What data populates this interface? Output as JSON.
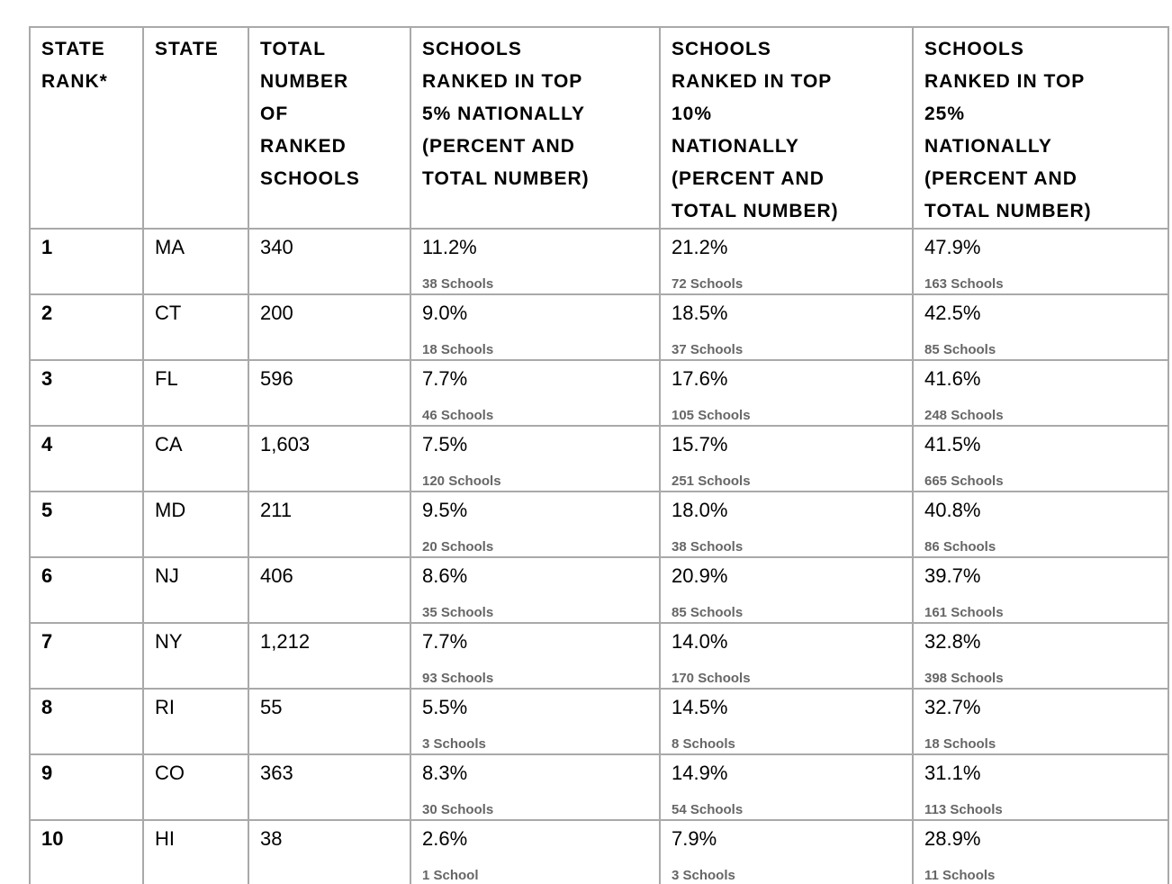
{
  "table": {
    "columns": [
      {
        "id": "rank",
        "label": "STATE\nRANK*"
      },
      {
        "id": "state",
        "label": "STATE"
      },
      {
        "id": "total",
        "label": "TOTAL\nNUMBER\nOF\nRANKED\nSCHOOLS"
      },
      {
        "id": "top5",
        "label": "SCHOOLS\nRANKED IN TOP\n5% NATIONALLY\n(PERCENT AND\nTOTAL NUMBER)"
      },
      {
        "id": "top10",
        "label": "SCHOOLS\nRANKED IN TOP\n10%\nNATIONALLY\n(PERCENT AND\nTOTAL NUMBER)"
      },
      {
        "id": "top25",
        "label": "SCHOOLS\nRANKED IN TOP\n25%\nNATIONALLY\n(PERCENT AND\nTOTAL NUMBER)"
      }
    ],
    "rows": [
      {
        "rank": "1",
        "state": "MA",
        "total": "340",
        "top5_pct": "11.2%",
        "top5_n": "38 Schools",
        "top10_pct": "21.2%",
        "top10_n": "72 Schools",
        "top25_pct": "47.9%",
        "top25_n": "163 Schools"
      },
      {
        "rank": "2",
        "state": "CT",
        "total": "200",
        "top5_pct": "9.0%",
        "top5_n": "18 Schools",
        "top10_pct": "18.5%",
        "top10_n": "37 Schools",
        "top25_pct": "42.5%",
        "top25_n": "85 Schools"
      },
      {
        "rank": "3",
        "state": "FL",
        "total": "596",
        "top5_pct": "7.7%",
        "top5_n": "46 Schools",
        "top10_pct": "17.6%",
        "top10_n": "105 Schools",
        "top25_pct": "41.6%",
        "top25_n": "248 Schools"
      },
      {
        "rank": "4",
        "state": "CA",
        "total": "1,603",
        "top5_pct": "7.5%",
        "top5_n": "120 Schools",
        "top10_pct": "15.7%",
        "top10_n": "251 Schools",
        "top25_pct": "41.5%",
        "top25_n": "665 Schools"
      },
      {
        "rank": "5",
        "state": "MD",
        "total": "211",
        "top5_pct": "9.5%",
        "top5_n": "20 Schools",
        "top10_pct": "18.0%",
        "top10_n": "38 Schools",
        "top25_pct": "40.8%",
        "top25_n": "86 Schools"
      },
      {
        "rank": "6",
        "state": "NJ",
        "total": "406",
        "top5_pct": "8.6%",
        "top5_n": "35 Schools",
        "top10_pct": "20.9%",
        "top10_n": "85 Schools",
        "top25_pct": "39.7%",
        "top25_n": "161 Schools"
      },
      {
        "rank": "7",
        "state": "NY",
        "total": "1,212",
        "top5_pct": "7.7%",
        "top5_n": "93 Schools",
        "top10_pct": "14.0%",
        "top10_n": "170 Schools",
        "top25_pct": "32.8%",
        "top25_n": "398 Schools"
      },
      {
        "rank": "8",
        "state": "RI",
        "total": "55",
        "top5_pct": "5.5%",
        "top5_n": "3 Schools",
        "top10_pct": "14.5%",
        "top10_n": "8 Schools",
        "top25_pct": "32.7%",
        "top25_n": "18 Schools"
      },
      {
        "rank": "9",
        "state": "CO",
        "total": "363",
        "top5_pct": "8.3%",
        "top5_n": "30 Schools",
        "top10_pct": "14.9%",
        "top10_n": "54 Schools",
        "top25_pct": "31.1%",
        "top25_n": "113 Schools"
      },
      {
        "rank": "10",
        "state": "HI",
        "total": "38",
        "top5_pct": "2.6%",
        "top5_n": "1 School",
        "top10_pct": "7.9%",
        "top10_n": "3 Schools",
        "top25_pct": "28.9%",
        "top25_n": "11 Schools"
      }
    ]
  },
  "colors": {
    "grid_line": "#a9a9a9",
    "primary_text": "#000000",
    "secondary_text": "#666666",
    "background": "#ffffff"
  }
}
